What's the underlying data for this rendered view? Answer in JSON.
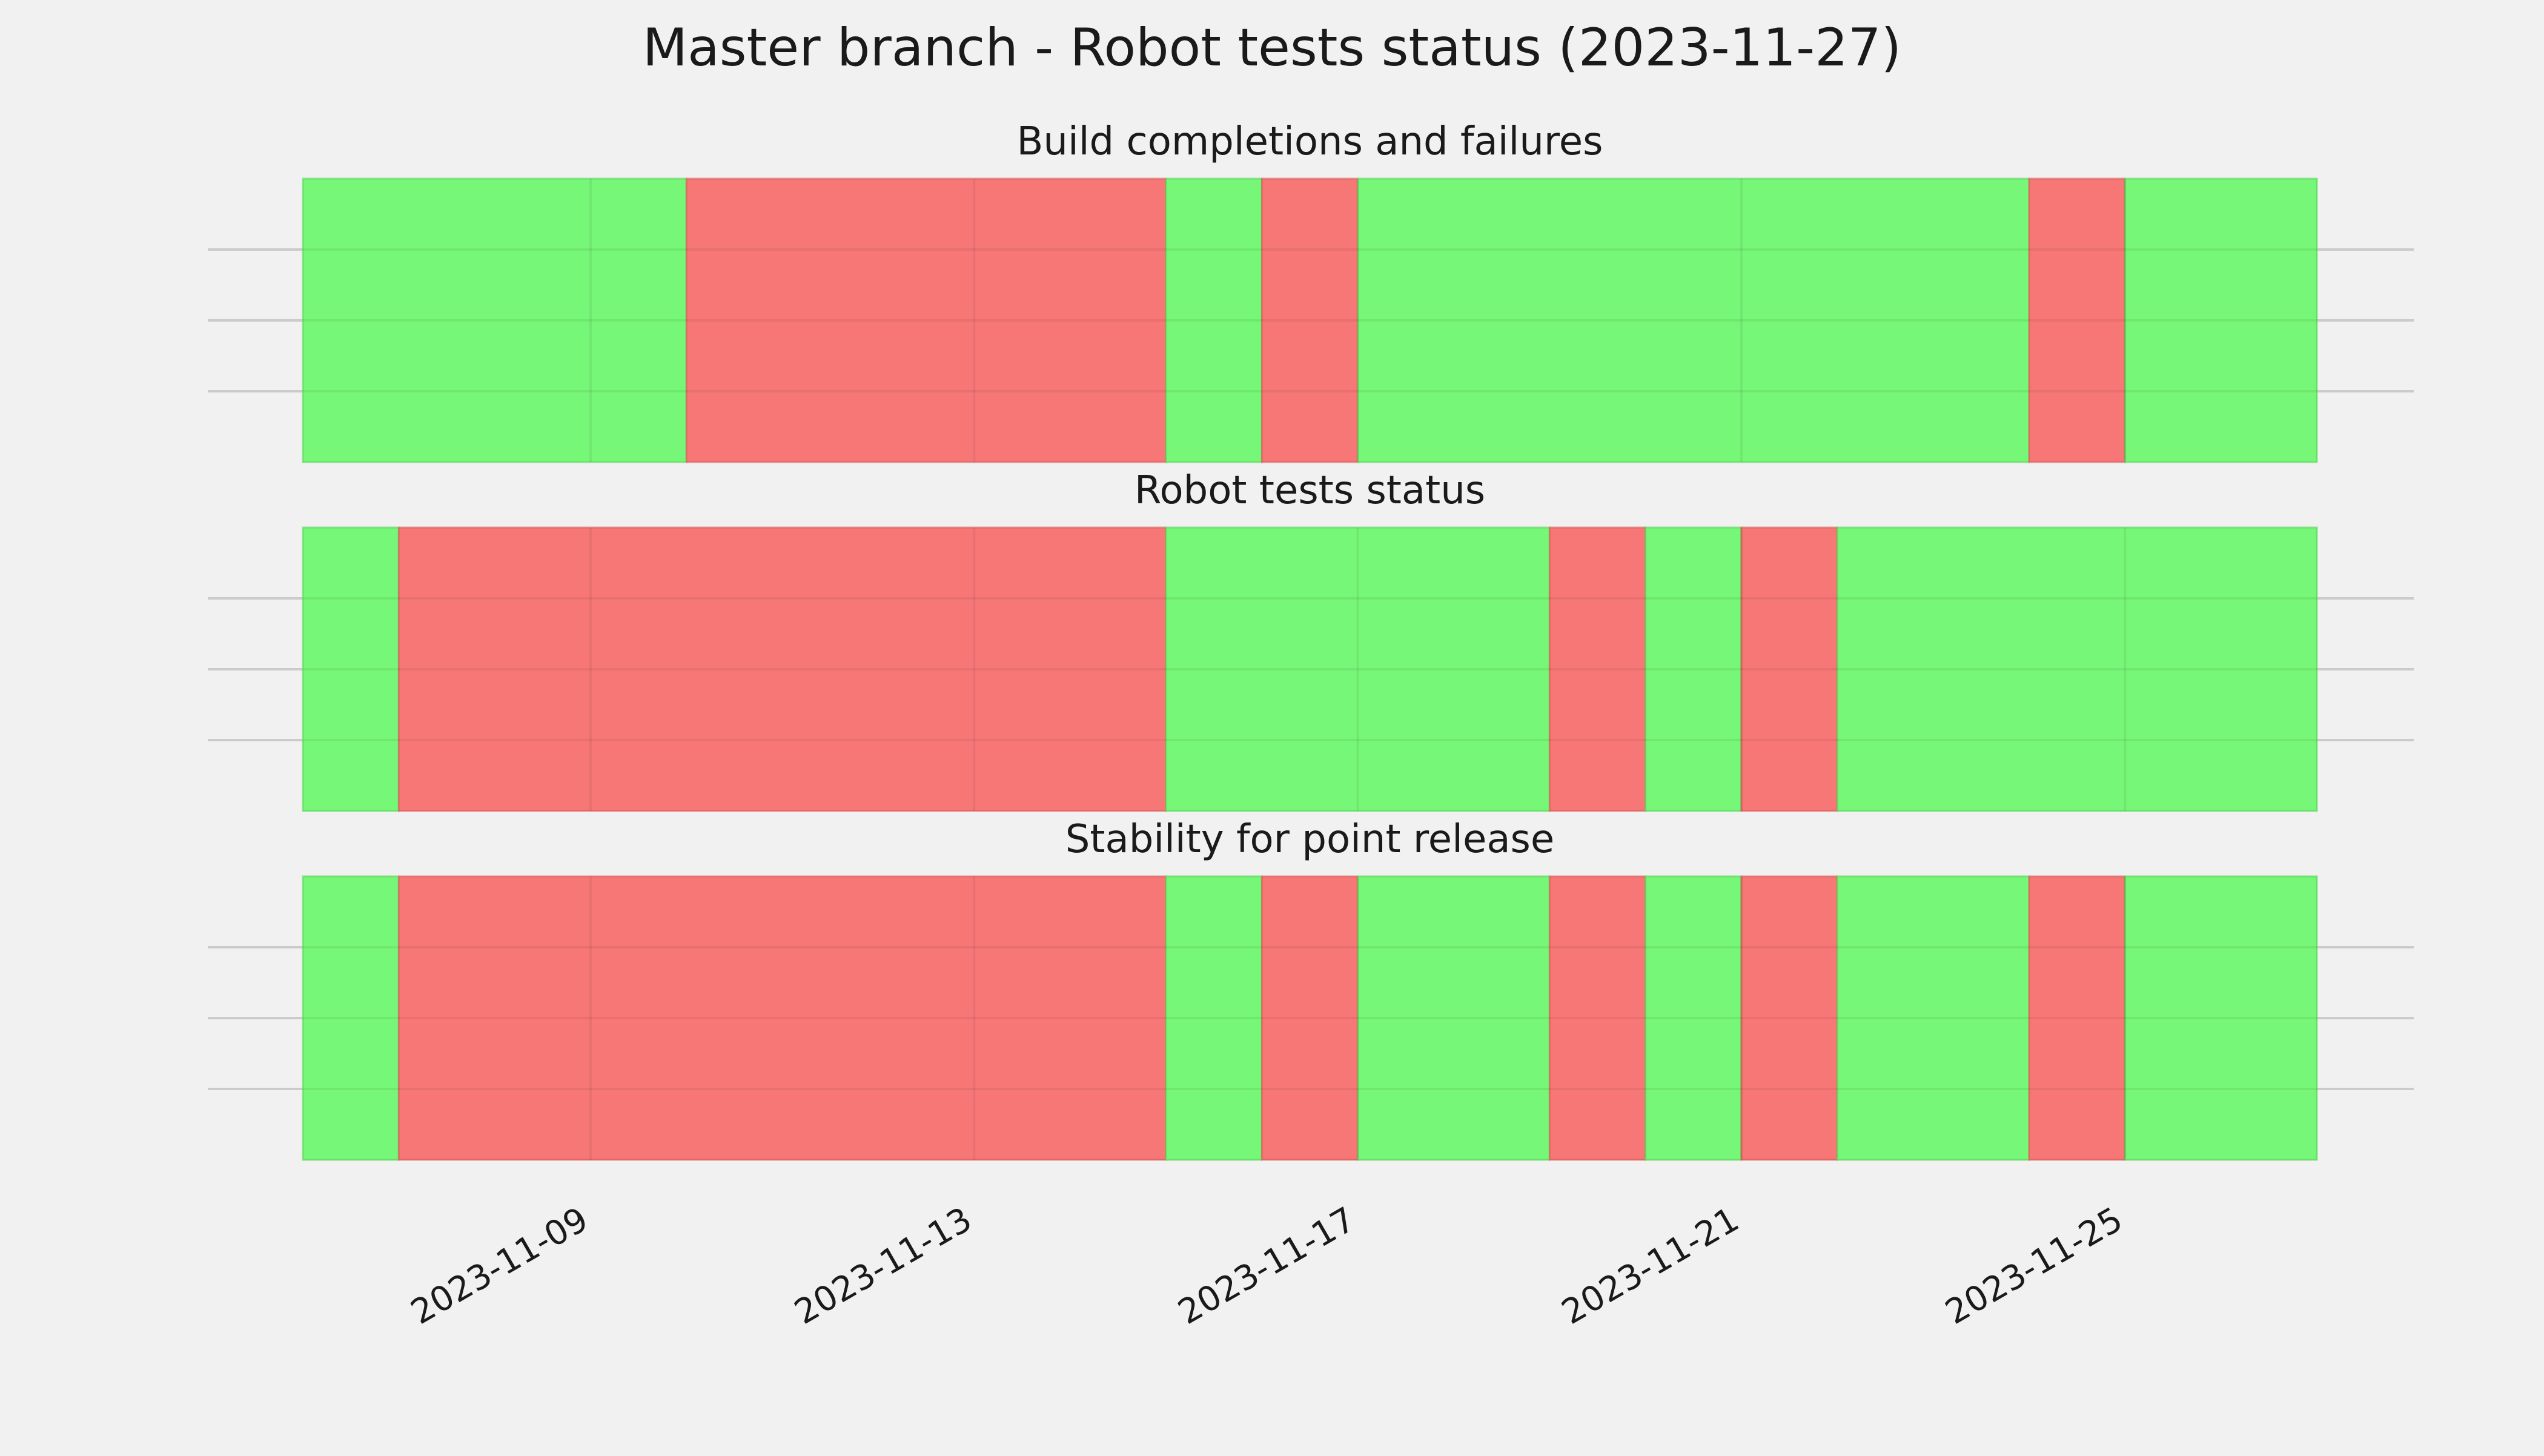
{
  "chart_data": {
    "type": "timeline",
    "title": "Master branch - Robot tests status (2023-11-27)",
    "x_start": "2023-11-06",
    "x_end": "2023-11-27",
    "x_ticks": [
      "2023-11-09",
      "2023-11-13",
      "2023-11-17",
      "2023-11-21",
      "2023-11-25"
    ],
    "colors": {
      "pass": "#77f777",
      "fail": "#f77777",
      "background": "#f1f1f1"
    },
    "grid": true,
    "panels": [
      {
        "title": "Build completions and failures",
        "segments": [
          {
            "start": "2023-11-06",
            "end": "2023-11-10",
            "status": "pass"
          },
          {
            "start": "2023-11-10",
            "end": "2023-11-15",
            "status": "fail"
          },
          {
            "start": "2023-11-15",
            "end": "2023-11-16",
            "status": "pass"
          },
          {
            "start": "2023-11-16",
            "end": "2023-11-17",
            "status": "fail"
          },
          {
            "start": "2023-11-17",
            "end": "2023-11-24",
            "status": "pass"
          },
          {
            "start": "2023-11-24",
            "end": "2023-11-25",
            "status": "fail"
          },
          {
            "start": "2023-11-25",
            "end": "2023-11-27",
            "status": "pass"
          }
        ]
      },
      {
        "title": "Robot tests status",
        "segments": [
          {
            "start": "2023-11-06",
            "end": "2023-11-07",
            "status": "pass"
          },
          {
            "start": "2023-11-07",
            "end": "2023-11-15",
            "status": "fail"
          },
          {
            "start": "2023-11-15",
            "end": "2023-11-19",
            "status": "pass"
          },
          {
            "start": "2023-11-19",
            "end": "2023-11-20",
            "status": "fail"
          },
          {
            "start": "2023-11-20",
            "end": "2023-11-21",
            "status": "pass"
          },
          {
            "start": "2023-11-21",
            "end": "2023-11-22",
            "status": "fail"
          },
          {
            "start": "2023-11-22",
            "end": "2023-11-27",
            "status": "pass"
          }
        ]
      },
      {
        "title": "Stability for point release",
        "segments": [
          {
            "start": "2023-11-06",
            "end": "2023-11-07",
            "status": "pass"
          },
          {
            "start": "2023-11-07",
            "end": "2023-11-15",
            "status": "fail"
          },
          {
            "start": "2023-11-15",
            "end": "2023-11-16",
            "status": "pass"
          },
          {
            "start": "2023-11-16",
            "end": "2023-11-17",
            "status": "fail"
          },
          {
            "start": "2023-11-17",
            "end": "2023-11-19",
            "status": "pass"
          },
          {
            "start": "2023-11-19",
            "end": "2023-11-20",
            "status": "fail"
          },
          {
            "start": "2023-11-20",
            "end": "2023-11-21",
            "status": "pass"
          },
          {
            "start": "2023-11-21",
            "end": "2023-11-22",
            "status": "fail"
          },
          {
            "start": "2023-11-22",
            "end": "2023-11-24",
            "status": "pass"
          },
          {
            "start": "2023-11-24",
            "end": "2023-11-25",
            "status": "fail"
          },
          {
            "start": "2023-11-25",
            "end": "2023-11-27",
            "status": "pass"
          }
        ]
      }
    ]
  }
}
